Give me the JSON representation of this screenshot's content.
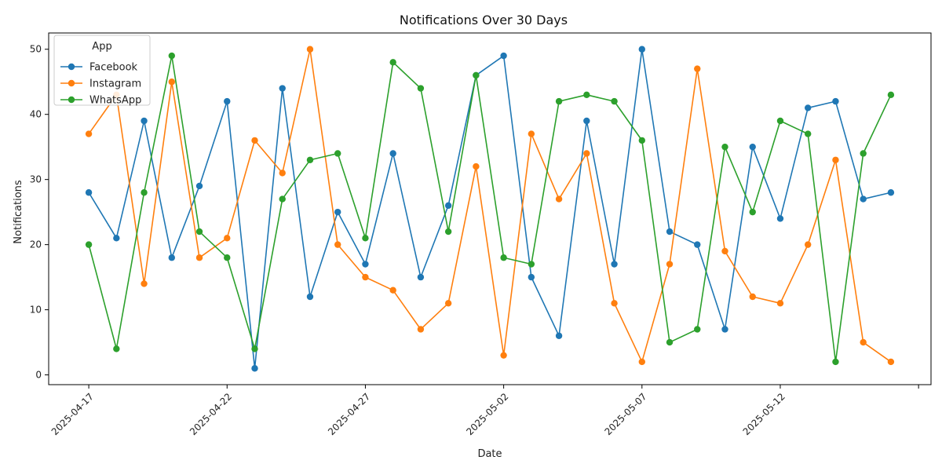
{
  "chart_data": {
    "type": "line",
    "title": "Notifications Over 30 Days",
    "xlabel": "Date",
    "ylabel": "Notifications",
    "legend_title": "App",
    "legend_position": "top-left",
    "grid": false,
    "x_start": "2025-04-17",
    "x": [
      "2025-04-17",
      "2025-04-18",
      "2025-04-19",
      "2025-04-20",
      "2025-04-21",
      "2025-04-22",
      "2025-04-23",
      "2025-04-24",
      "2025-04-25",
      "2025-04-26",
      "2025-04-27",
      "2025-04-28",
      "2025-04-29",
      "2025-04-30",
      "2025-05-01",
      "2025-05-02",
      "2025-05-03",
      "2025-05-04",
      "2025-05-05",
      "2025-05-06",
      "2025-05-07",
      "2025-05-08",
      "2025-05-09",
      "2025-05-10",
      "2025-05-11",
      "2025-05-12",
      "2025-05-13",
      "2025-05-14",
      "2025-05-15",
      "2025-05-16"
    ],
    "x_ticks": [
      "2025-04-17",
      "2025-04-22",
      "2025-04-27",
      "2025-05-02",
      "2025-05-07",
      "2025-05-12"
    ],
    "ylim": [
      -1.5,
      52.5
    ],
    "y_ticks": [
      0,
      10,
      20,
      30,
      40,
      50
    ],
    "series": [
      {
        "name": "Facebook",
        "color": "#1f77b4",
        "values": [
          28,
          21,
          39,
          18,
          29,
          42,
          1,
          44,
          12,
          25,
          17,
          34,
          15,
          26,
          46,
          49,
          15,
          6,
          39,
          17,
          50,
          22,
          20,
          7,
          35,
          24,
          41,
          42,
          27,
          28
        ]
      },
      {
        "name": "Instagram",
        "color": "#ff7f0e",
        "values": [
          37,
          43,
          14,
          45,
          18,
          21,
          36,
          31,
          50,
          20,
          15,
          13,
          7,
          11,
          32,
          3,
          37,
          27,
          34,
          11,
          2,
          17,
          47,
          19,
          12,
          11,
          20,
          33,
          5,
          2
        ]
      },
      {
        "name": "WhatsApp",
        "color": "#2ca02c",
        "values": [
          20,
          4,
          28,
          49,
          22,
          18,
          4,
          27,
          33,
          34,
          21,
          48,
          44,
          22,
          46,
          18,
          17,
          42,
          43,
          42,
          36,
          5,
          7,
          35,
          25,
          39,
          37,
          2,
          34,
          43
        ]
      }
    ]
  }
}
